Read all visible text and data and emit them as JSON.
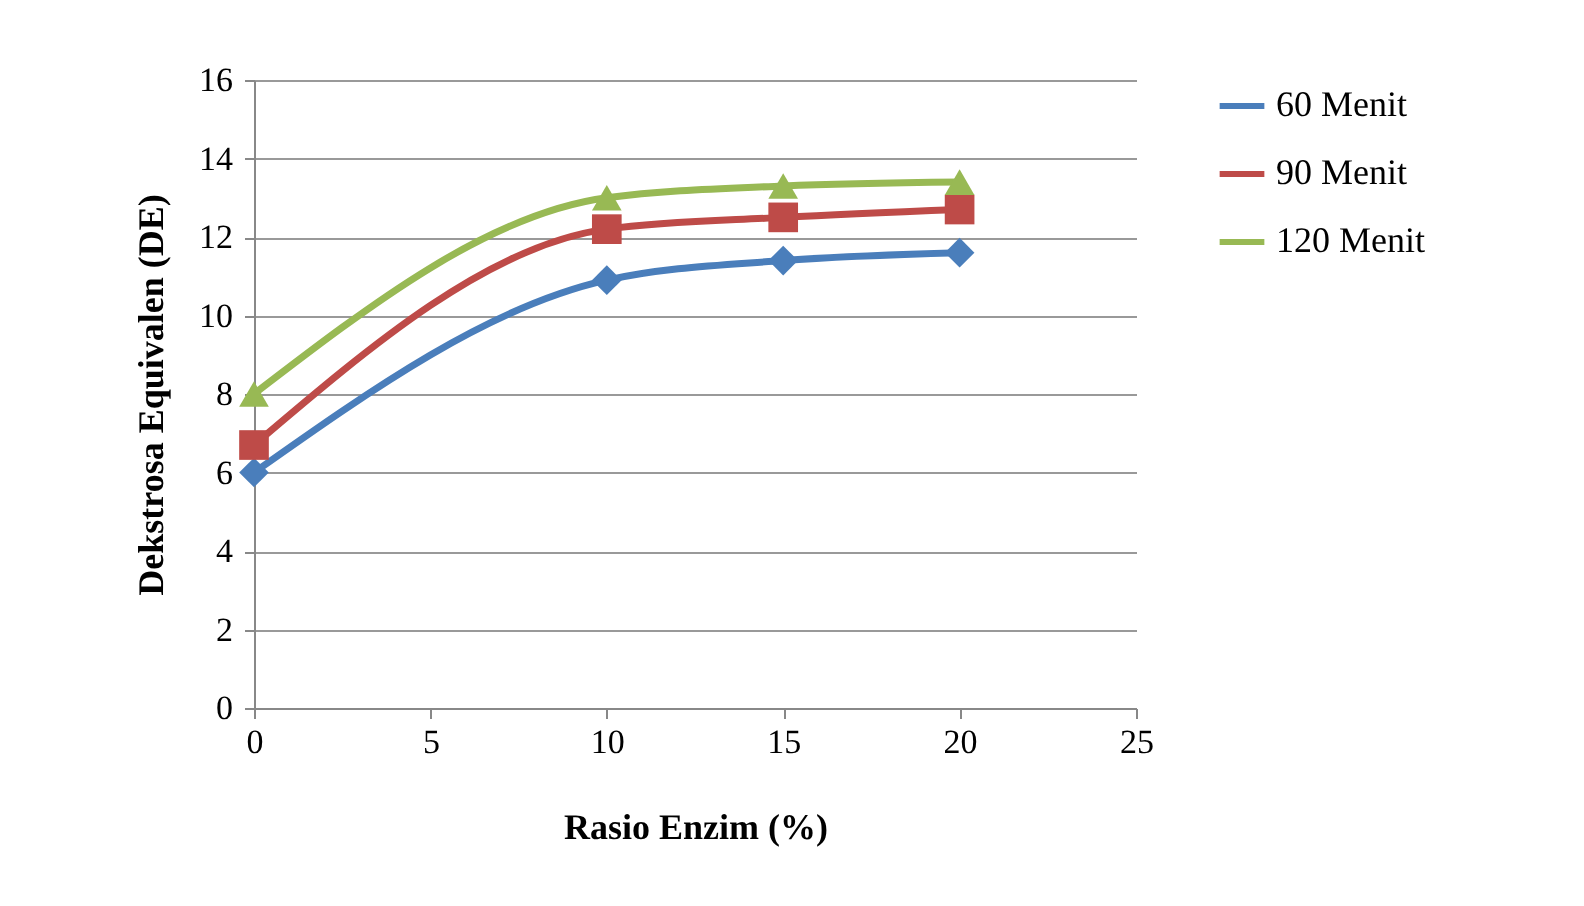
{
  "chart_data": {
    "type": "line",
    "xlabel": "Rasio Enzim (%)",
    "ylabel": "Dekstrosa Equivalen (DE)",
    "x": [
      0,
      10,
      15,
      20
    ],
    "series": [
      {
        "name": "60 Menit",
        "color": "#4a7ebb",
        "marker": "diamond",
        "values": [
          6.0,
          10.9,
          11.4,
          11.6
        ]
      },
      {
        "name": "90 Menit",
        "color": "#be4b48",
        "marker": "square",
        "values": [
          6.7,
          12.2,
          12.5,
          12.7
        ]
      },
      {
        "name": "120 Menit",
        "color": "#98b954",
        "marker": "triangle",
        "values": [
          8.0,
          13.0,
          13.3,
          13.4
        ]
      }
    ],
    "xlim": [
      0,
      25
    ],
    "xticks": [
      0,
      5,
      10,
      15,
      20,
      25
    ],
    "ylim": [
      0,
      16
    ],
    "yticks": [
      0,
      2,
      4,
      6,
      8,
      10,
      12,
      14,
      16
    ],
    "grid": "y",
    "legend": "right",
    "line_style": "solid"
  }
}
